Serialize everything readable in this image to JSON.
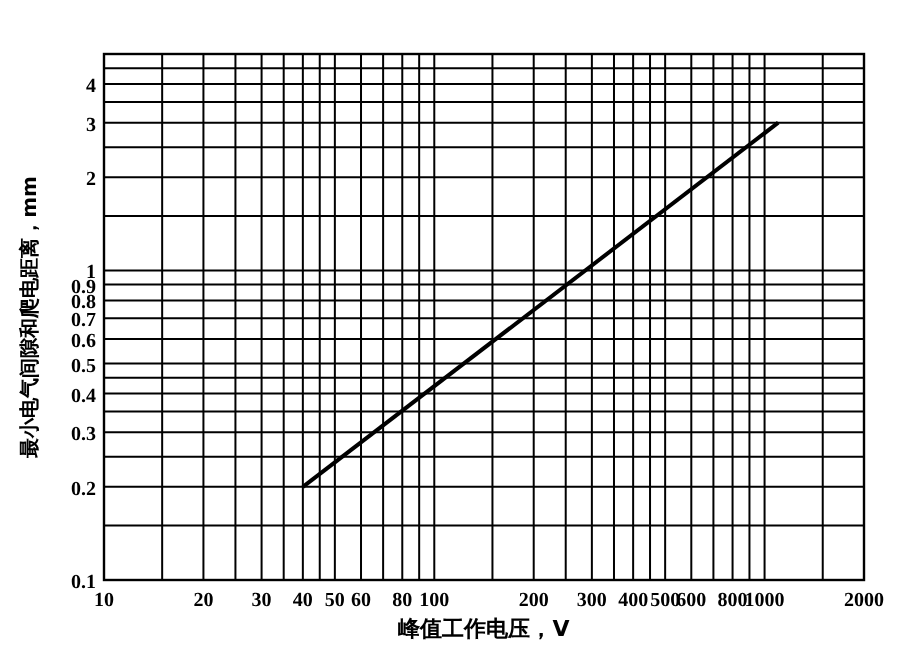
{
  "chart_data": {
    "type": "line",
    "xlabel": "峰值工作电压，V",
    "ylabel": "最小电气间隙和爬电距离，mm",
    "log": "xy",
    "grid": true,
    "marker": "none",
    "line_style": "solid",
    "xlim": [
      10,
      2000
    ],
    "ylim": [
      0.1,
      5
    ],
    "xticks": [
      10,
      {
        "value": 15,
        "label": null
      },
      20,
      {
        "value": 25,
        "label": null
      },
      30,
      {
        "value": 35,
        "label": null
      },
      40,
      {
        "value": 45,
        "label": null
      },
      50,
      60,
      {
        "value": 70,
        "label": null
      },
      80,
      {
        "value": 90,
        "label": null
      },
      100,
      {
        "value": 150,
        "label": null
      },
      200,
      {
        "value": 250,
        "label": null
      },
      300,
      {
        "value": 350,
        "label": null
      },
      400,
      {
        "value": 450,
        "label": null
      },
      500,
      600,
      {
        "value": 700,
        "label": null
      },
      800,
      {
        "value": 900,
        "label": null
      },
      1000,
      {
        "value": 1500,
        "label": null
      },
      2000
    ],
    "yticks": [
      0.1,
      {
        "value": 0.15,
        "label": null
      },
      0.2,
      {
        "value": 0.25,
        "label": null
      },
      0.3,
      {
        "value": 0.35,
        "label": null
      },
      0.4,
      {
        "value": 0.45,
        "label": null
      },
      0.5,
      0.6,
      0.7,
      0.8,
      0.9,
      1,
      {
        "value": 1.5,
        "label": null
      },
      2,
      {
        "value": 2.5,
        "label": null
      },
      3,
      {
        "value": 3.5,
        "label": null
      },
      4,
      {
        "value": 4.5,
        "label": null
      },
      {
        "value": 5,
        "label": null
      }
    ],
    "series": [
      {
        "color": "#000000",
        "x": [
          40,
          1100
        ],
        "values": [
          0.2,
          3
        ]
      }
    ]
  }
}
